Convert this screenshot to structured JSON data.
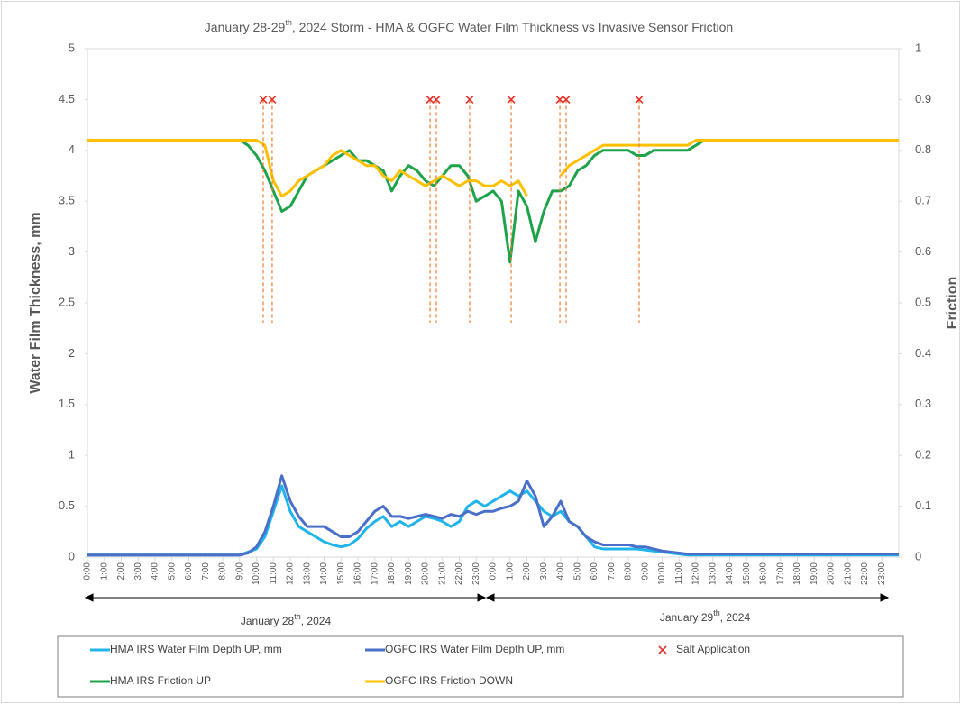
{
  "chart_data": {
    "type": "line",
    "title": {
      "pre": "January 28-29",
      "sup": "th",
      "post": ", 2024 Storm - HMA & OGFC Water Film Thickness vs Invasive Sensor Friction"
    },
    "y_label": "Water Film Thickness, mm",
    "y2_label": "Friction",
    "date_labels": [
      {
        "pre": "January 28",
        "sup": "th",
        "post": ", 2024"
      },
      {
        "pre": "January 29",
        "sup": "th",
        "post": ", 2024"
      }
    ],
    "xlim": [
      0,
      48
    ],
    "xticks": [
      {
        "value": 0,
        "label": "0:00"
      },
      {
        "value": 1,
        "label": "1:00"
      },
      {
        "value": 2,
        "label": "2:00"
      },
      {
        "value": 3,
        "label": "3:00"
      },
      {
        "value": 4,
        "label": "4:00"
      },
      {
        "value": 5,
        "label": "5:00"
      },
      {
        "value": 6,
        "label": "6:00"
      },
      {
        "value": 7,
        "label": "7:00"
      },
      {
        "value": 8,
        "label": "8:00"
      },
      {
        "value": 9,
        "label": "9:00"
      },
      {
        "value": 10,
        "label": "10:00"
      },
      {
        "value": 11,
        "label": "11:00"
      },
      {
        "value": 12,
        "label": "12:00"
      },
      {
        "value": 13,
        "label": "13:00"
      },
      {
        "value": 14,
        "label": "14:00"
      },
      {
        "value": 15,
        "label": "15:00"
      },
      {
        "value": 16,
        "label": "16:00"
      },
      {
        "value": 17,
        "label": "17:00"
      },
      {
        "value": 18,
        "label": "18:00"
      },
      {
        "value": 19,
        "label": "19:00"
      },
      {
        "value": 20,
        "label": "20:00"
      },
      {
        "value": 21,
        "label": "21:00"
      },
      {
        "value": 22,
        "label": "22:00"
      },
      {
        "value": 23,
        "label": "23:00"
      },
      {
        "value": 24,
        "label": "0:00"
      },
      {
        "value": 25,
        "label": "1:00"
      },
      {
        "value": 26,
        "label": "2:00"
      },
      {
        "value": 27,
        "label": "3:00"
      },
      {
        "value": 28,
        "label": "4:00"
      },
      {
        "value": 29,
        "label": "5:00"
      },
      {
        "value": 30,
        "label": "6:00"
      },
      {
        "value": 31,
        "label": "7:00"
      },
      {
        "value": 32,
        "label": "8:00"
      },
      {
        "value": 33,
        "label": "9:00"
      },
      {
        "value": 34,
        "label": "10:00"
      },
      {
        "value": 35,
        "label": "11:00"
      },
      {
        "value": 36,
        "label": "12:00"
      },
      {
        "value": 37,
        "label": "13:00"
      },
      {
        "value": 38,
        "label": "14:00"
      },
      {
        "value": 39,
        "label": "15:00"
      },
      {
        "value": 40,
        "label": "16:00"
      },
      {
        "value": 41,
        "label": "17:00"
      },
      {
        "value": 42,
        "label": "18:00"
      },
      {
        "value": 43,
        "label": "19:00"
      },
      {
        "value": 44,
        "label": "20:00"
      },
      {
        "value": 45,
        "label": "21:00"
      },
      {
        "value": 46,
        "label": "22:00"
      },
      {
        "value": 47,
        "label": "23:00"
      }
    ],
    "ylim": [
      0,
      5
    ],
    "yticks": [
      0,
      0.5,
      1,
      1.5,
      2,
      2.5,
      3,
      3.5,
      4,
      4.5,
      5
    ],
    "y2lim": [
      0,
      1
    ],
    "y2ticks": [
      0,
      0.1,
      0.2,
      0.3,
      0.4,
      0.5,
      0.6,
      0.7,
      0.8,
      0.9,
      1
    ],
    "x": [
      0,
      0.5,
      1,
      1.5,
      2,
      2.5,
      3,
      3.5,
      4,
      4.5,
      5,
      5.5,
      6,
      6.5,
      7,
      7.5,
      8,
      8.5,
      9,
      9.5,
      10,
      10.5,
      11,
      11.5,
      12,
      12.5,
      13,
      13.5,
      14,
      14.5,
      15,
      15.5,
      16,
      16.5,
      17,
      17.5,
      18,
      18.5,
      19,
      19.5,
      20,
      20.5,
      21,
      21.5,
      22,
      22.5,
      23,
      23.5,
      24,
      24.5,
      25,
      25.5,
      26,
      26.5,
      27,
      27.5,
      28,
      28.5,
      29,
      29.5,
      30,
      30.5,
      31,
      31.5,
      32,
      32.5,
      33,
      33.5,
      34,
      34.5,
      35,
      35.5,
      36,
      36.5,
      37,
      37.5,
      38,
      38.5,
      39,
      39.5,
      40,
      40.5,
      41,
      41.5,
      42,
      42.5,
      43,
      43.5,
      44,
      44.5,
      45,
      45.5,
      46,
      46.5,
      47,
      47.5,
      48
    ],
    "series": [
      {
        "name": "HMA IRS  Water Film Depth UP, mm",
        "color": "#1fb5ea",
        "axis": "y",
        "values": [
          0.02,
          0.02,
          0.02,
          0.02,
          0.02,
          0.02,
          0.02,
          0.02,
          0.02,
          0.02,
          0.02,
          0.02,
          0.02,
          0.02,
          0.02,
          0.02,
          0.02,
          0.02,
          0.02,
          0.05,
          0.08,
          0.2,
          0.45,
          0.7,
          0.45,
          0.3,
          0.25,
          0.2,
          0.15,
          0.12,
          0.1,
          0.12,
          0.18,
          0.28,
          0.35,
          0.4,
          0.3,
          0.35,
          0.3,
          0.35,
          0.4,
          0.38,
          0.35,
          0.3,
          0.35,
          0.5,
          0.55,
          0.5,
          0.55,
          0.6,
          0.65,
          0.6,
          0.65,
          0.55,
          0.45,
          0.4,
          0.45,
          0.35,
          0.3,
          0.2,
          0.1,
          0.08,
          0.08,
          0.08,
          0.08,
          0.08,
          0.07,
          0.06,
          0.05,
          0.04,
          0.03,
          0.02,
          0.02,
          0.02,
          0.02,
          0.02,
          0.02,
          0.02,
          0.02,
          0.02,
          0.02,
          0.02,
          0.02,
          0.02,
          0.02,
          0.02,
          0.02,
          0.02,
          0.02,
          0.02,
          0.02,
          0.02,
          0.02,
          0.02,
          0.02,
          0.02,
          0.02
        ]
      },
      {
        "name": "OGFC IRS  Water Film Depth UP, mm",
        "color": "#4a6fc9",
        "axis": "y",
        "values": [
          0.02,
          0.02,
          0.02,
          0.02,
          0.02,
          0.02,
          0.02,
          0.02,
          0.02,
          0.02,
          0.02,
          0.02,
          0.02,
          0.02,
          0.02,
          0.02,
          0.02,
          0.02,
          0.02,
          0.04,
          0.1,
          0.25,
          0.5,
          0.8,
          0.55,
          0.4,
          0.3,
          0.3,
          0.3,
          0.25,
          0.2,
          0.2,
          0.25,
          0.35,
          0.45,
          0.5,
          0.4,
          0.4,
          0.38,
          0.4,
          0.42,
          0.4,
          0.38,
          0.42,
          0.4,
          0.45,
          0.42,
          0.45,
          0.45,
          0.48,
          0.5,
          0.55,
          0.75,
          0.6,
          0.3,
          0.4,
          0.55,
          0.35,
          0.3,
          0.2,
          0.15,
          0.12,
          0.12,
          0.12,
          0.12,
          0.1,
          0.1,
          0.08,
          0.06,
          0.05,
          0.04,
          0.03,
          0.03,
          0.03,
          0.03,
          0.03,
          0.03,
          0.03,
          0.03,
          0.03,
          0.03,
          0.03,
          0.03,
          0.03,
          0.03,
          0.03,
          0.03,
          0.03,
          0.03,
          0.03,
          0.03,
          0.03,
          0.03,
          0.03,
          0.03,
          0.03,
          0.03
        ]
      },
      {
        "name": "HMA IRS Friction UP",
        "color": "#1fa34a",
        "axis": "y2",
        "values": [
          0.82,
          0.82,
          0.82,
          0.82,
          0.82,
          0.82,
          0.82,
          0.82,
          0.82,
          0.82,
          0.82,
          0.82,
          0.82,
          0.82,
          0.82,
          0.82,
          0.82,
          0.82,
          0.82,
          0.81,
          0.79,
          0.76,
          0.72,
          0.68,
          0.69,
          0.72,
          0.75,
          0.76,
          0.77,
          0.78,
          0.79,
          0.8,
          0.78,
          0.78,
          0.77,
          0.76,
          0.72,
          0.75,
          0.77,
          0.76,
          0.74,
          0.73,
          0.75,
          0.77,
          0.77,
          0.75,
          0.7,
          0.71,
          0.72,
          0.7,
          0.58,
          0.72,
          0.69,
          0.62,
          0.68,
          0.72,
          0.72,
          0.73,
          0.76,
          0.77,
          0.79,
          0.8,
          0.8,
          0.8,
          0.8,
          0.79,
          0.79,
          0.8,
          0.8,
          0.8,
          0.8,
          0.8,
          0.81,
          0.82,
          0.82,
          0.82,
          0.82,
          0.82,
          0.82,
          0.82,
          0.82,
          0.82,
          0.82,
          0.82,
          0.82,
          0.82,
          0.82,
          0.82,
          0.82,
          0.82,
          0.82,
          0.82,
          0.82,
          0.82,
          0.82,
          0.82,
          0.82
        ]
      },
      {
        "name": "OGFC IRS Friction DOWN",
        "color": "#ffc000",
        "axis": "y2",
        "values": [
          0.82,
          0.82,
          0.82,
          0.82,
          0.82,
          0.82,
          0.82,
          0.82,
          0.82,
          0.82,
          0.82,
          0.82,
          0.82,
          0.82,
          0.82,
          0.82,
          0.82,
          0.82,
          0.82,
          0.82,
          0.82,
          0.81,
          0.74,
          0.71,
          0.72,
          0.74,
          0.75,
          0.76,
          0.77,
          0.79,
          0.8,
          0.79,
          0.78,
          0.77,
          0.77,
          0.75,
          0.74,
          0.76,
          0.75,
          0.74,
          0.73,
          0.74,
          0.75,
          0.74,
          0.73,
          0.74,
          0.74,
          0.73,
          0.73,
          0.74,
          0.73,
          0.74,
          0.71,
          null,
          null,
          null,
          0.75,
          0.77,
          0.78,
          0.79,
          0.8,
          0.81,
          0.81,
          0.81,
          0.81,
          0.81,
          0.81,
          0.81,
          0.81,
          0.81,
          0.81,
          0.81,
          0.82,
          0.82,
          0.82,
          0.82,
          0.82,
          0.82,
          0.82,
          0.82,
          0.82,
          0.82,
          0.82,
          0.82,
          0.82,
          0.82,
          0.82,
          0.82,
          0.82,
          0.82,
          0.82,
          0.82,
          0.82,
          0.82,
          0.82,
          0.82,
          0.82
        ]
      },
      {
        "name": "Salt Application",
        "color": "#e8302a",
        "axis": "y",
        "marker": "x",
        "x": [
          10.4,
          10.93,
          20.27,
          20.64,
          22.61,
          25.07,
          27.95,
          28.32,
          32.64
        ],
        "values": [
          4.5,
          4.5,
          4.5,
          4.5,
          4.5,
          4.5,
          4.5,
          4.5,
          4.5
        ]
      }
    ]
  }
}
